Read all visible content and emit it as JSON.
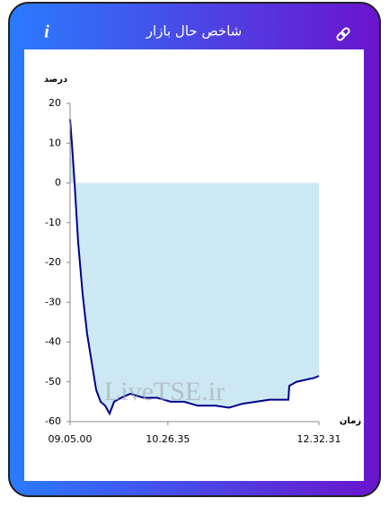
{
  "header": {
    "title": "شاخص حال بازار"
  },
  "chart_data": {
    "type": "line",
    "y_label": "درصد",
    "x_label": "زمان",
    "watermark": "LiveTSE.ir",
    "series": [
      {
        "color": "#00008b",
        "fill": "#cce8f2",
        "x": [
          32700,
          32790,
          32925,
          33105,
          33329,
          33554,
          33779,
          34004,
          34228,
          34453,
          34678,
          34903,
          35262,
          35712,
          36386,
          37060,
          37734,
          38409,
          39083,
          39982,
          40656,
          41330,
          42005,
          42679,
          43623,
          43668,
          44027,
          44477,
          44926,
          45151
        ],
        "values": [
          16,
          10,
          0,
          -15,
          -28,
          -38,
          -45,
          -52,
          -55,
          -56,
          -58,
          -55,
          -54,
          -53,
          -54,
          -54,
          -55,
          -55,
          -56,
          -56,
          -56.5,
          -55.5,
          -55,
          -54.5,
          -54.5,
          -51,
          -50,
          -49.5,
          -49,
          -48.5
        ]
      }
    ],
    "xlim": [
      32700,
      45151
    ],
    "xticks": [
      {
        "value": 32700,
        "label": "09.05.00"
      },
      {
        "value": 37595,
        "label": "10.26.35"
      },
      {
        "value": 45151,
        "label": "12.32.31"
      }
    ],
    "ylim": [
      -60,
      20
    ],
    "yticks": [
      -60,
      -50,
      -40,
      -30,
      -20,
      -10,
      0,
      10,
      20
    ],
    "grid": false
  }
}
